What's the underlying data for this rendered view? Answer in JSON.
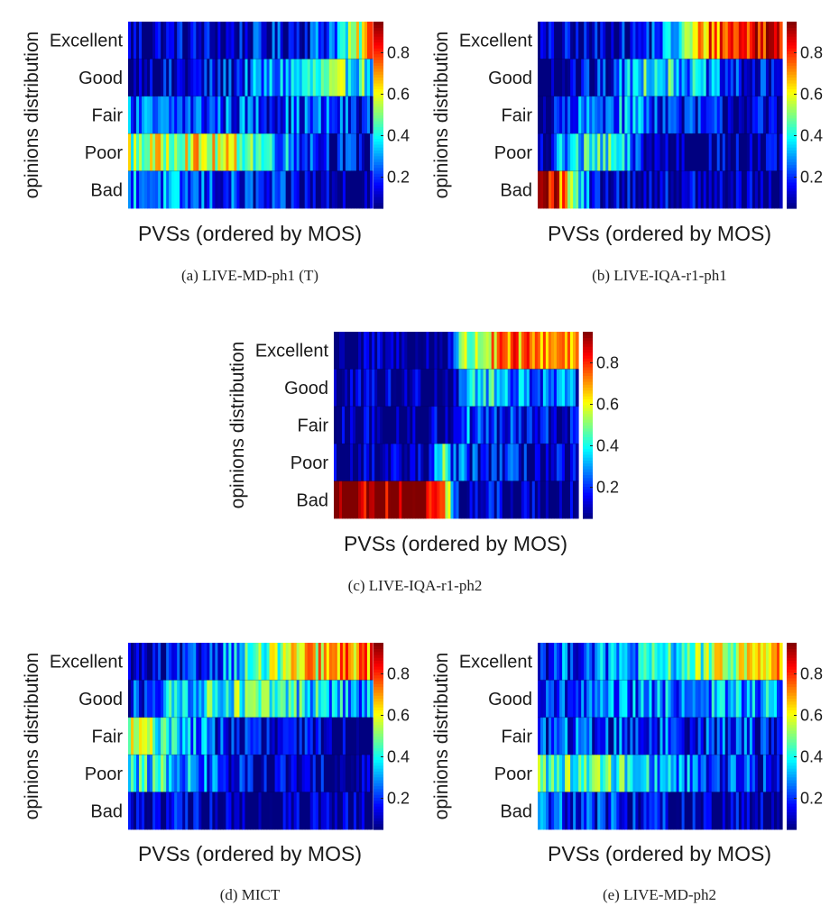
{
  "figure": {
    "colormap": "jet",
    "colorbar_ticks": [
      "0.2",
      "0.4",
      "0.6",
      "0.8"
    ],
    "colorbar_tick_values": [
      0.2,
      0.4,
      0.6,
      0.8
    ],
    "colorbar_range": [
      0.05,
      0.95
    ]
  },
  "chart_data": [
    {
      "type": "heatmap",
      "caption": "(a) LIVE-MD-ph1 (T)",
      "xlabel": "PVSs (ordered by MOS)",
      "ylabel": "opinions distribution",
      "rows": [
        "Excellent",
        "Good",
        "Fair",
        "Poor",
        "Bad"
      ],
      "columns": 90,
      "profile": {
        "Excellent": [
          [
            0.0,
            0.1
          ],
          [
            0.35,
            0.1
          ],
          [
            0.6,
            0.14
          ],
          [
            0.8,
            0.22
          ],
          [
            0.92,
            0.45
          ],
          [
            1.0,
            0.75
          ]
        ],
        "Good": [
          [
            0.0,
            0.08
          ],
          [
            0.35,
            0.13
          ],
          [
            0.55,
            0.25
          ],
          [
            0.75,
            0.38
          ],
          [
            0.88,
            0.45
          ],
          [
            1.0,
            0.4
          ]
        ],
        "Fair": [
          [
            0.0,
            0.22
          ],
          [
            0.3,
            0.22
          ],
          [
            0.6,
            0.22
          ],
          [
            0.85,
            0.2
          ],
          [
            1.0,
            0.15
          ]
        ],
        "Poor": [
          [
            0.0,
            0.5
          ],
          [
            0.25,
            0.6
          ],
          [
            0.45,
            0.55
          ],
          [
            0.65,
            0.3
          ],
          [
            0.85,
            0.15
          ],
          [
            1.0,
            0.1
          ]
        ],
        "Bad": [
          [
            0.0,
            0.3
          ],
          [
            0.25,
            0.22
          ],
          [
            0.5,
            0.16
          ],
          [
            0.7,
            0.1
          ],
          [
            1.0,
            0.05
          ]
        ]
      }
    },
    {
      "type": "heatmap",
      "caption": "(b) LIVE-IQA-r1-ph1",
      "xlabel": "PVSs (ordered by MOS)",
      "ylabel": "opinions distribution",
      "rows": [
        "Excellent",
        "Good",
        "Fair",
        "Poor",
        "Bad"
      ],
      "columns": 90,
      "profile": {
        "Excellent": [
          [
            0.0,
            0.06
          ],
          [
            0.4,
            0.12
          ],
          [
            0.55,
            0.3
          ],
          [
            0.7,
            0.75
          ],
          [
            1.0,
            0.9
          ]
        ],
        "Good": [
          [
            0.0,
            0.05
          ],
          [
            0.3,
            0.15
          ],
          [
            0.45,
            0.45
          ],
          [
            0.65,
            0.3
          ],
          [
            0.8,
            0.15
          ],
          [
            1.0,
            0.1
          ]
        ],
        "Fair": [
          [
            0.0,
            0.05
          ],
          [
            0.22,
            0.25
          ],
          [
            0.4,
            0.3
          ],
          [
            0.6,
            0.15
          ],
          [
            1.0,
            0.08
          ]
        ],
        "Poor": [
          [
            0.0,
            0.1
          ],
          [
            0.15,
            0.35
          ],
          [
            0.3,
            0.4
          ],
          [
            0.45,
            0.1
          ],
          [
            1.0,
            0.05
          ]
        ],
        "Bad": [
          [
            0.0,
            0.92
          ],
          [
            0.08,
            0.88
          ],
          [
            0.15,
            0.4
          ],
          [
            0.25,
            0.1
          ],
          [
            1.0,
            0.05
          ]
        ]
      }
    },
    {
      "type": "heatmap",
      "caption": "(c) LIVE-IQA-r1-ph2",
      "xlabel": "PVSs (ordered by MOS)",
      "ylabel": "opinions distribution",
      "rows": [
        "Excellent",
        "Good",
        "Fair",
        "Poor",
        "Bad"
      ],
      "columns": 90,
      "profile": {
        "Excellent": [
          [
            0.0,
            0.04
          ],
          [
            0.45,
            0.04
          ],
          [
            0.52,
            0.45
          ],
          [
            0.7,
            0.7
          ],
          [
            1.0,
            0.75
          ]
        ],
        "Good": [
          [
            0.0,
            0.04
          ],
          [
            0.47,
            0.06
          ],
          [
            0.55,
            0.4
          ],
          [
            0.75,
            0.3
          ],
          [
            1.0,
            0.2
          ]
        ],
        "Fair": [
          [
            0.0,
            0.04
          ],
          [
            0.46,
            0.06
          ],
          [
            0.52,
            0.25
          ],
          [
            0.7,
            0.15
          ],
          [
            1.0,
            0.1
          ]
        ],
        "Poor": [
          [
            0.0,
            0.04
          ],
          [
            0.4,
            0.06
          ],
          [
            0.44,
            0.45
          ],
          [
            0.5,
            0.2
          ],
          [
            1.0,
            0.05
          ]
        ],
        "Bad": [
          [
            0.0,
            0.95
          ],
          [
            0.38,
            0.95
          ],
          [
            0.44,
            0.7
          ],
          [
            0.52,
            0.1
          ],
          [
            1.0,
            0.05
          ]
        ]
      }
    },
    {
      "type": "heatmap",
      "caption": "(d) MICT",
      "xlabel": "PVSs (ordered by MOS)",
      "ylabel": "opinions distribution",
      "rows": [
        "Excellent",
        "Good",
        "Fair",
        "Poor",
        "Bad"
      ],
      "columns": 90,
      "profile": {
        "Excellent": [
          [
            0.0,
            0.05
          ],
          [
            0.25,
            0.12
          ],
          [
            0.45,
            0.35
          ],
          [
            0.7,
            0.6
          ],
          [
            1.0,
            0.75
          ]
        ],
        "Good": [
          [
            0.0,
            0.15
          ],
          [
            0.2,
            0.35
          ],
          [
            0.45,
            0.45
          ],
          [
            0.7,
            0.4
          ],
          [
            1.0,
            0.25
          ]
        ],
        "Fair": [
          [
            0.0,
            0.55
          ],
          [
            0.15,
            0.45
          ],
          [
            0.35,
            0.2
          ],
          [
            0.6,
            0.1
          ],
          [
            1.0,
            0.06
          ]
        ],
        "Poor": [
          [
            0.0,
            0.35
          ],
          [
            0.15,
            0.4
          ],
          [
            0.3,
            0.25
          ],
          [
            0.5,
            0.1
          ],
          [
            1.0,
            0.05
          ]
        ],
        "Bad": [
          [
            0.0,
            0.15
          ],
          [
            0.15,
            0.1
          ],
          [
            0.4,
            0.05
          ],
          [
            1.0,
            0.04
          ]
        ]
      }
    },
    {
      "type": "heatmap",
      "caption": "(e) LIVE-MD-ph2",
      "xlabel": "PVSs (ordered by MOS)",
      "ylabel": "opinions distribution",
      "rows": [
        "Excellent",
        "Good",
        "Fair",
        "Poor",
        "Bad"
      ],
      "columns": 90,
      "profile": {
        "Excellent": [
          [
            0.0,
            0.18
          ],
          [
            0.4,
            0.3
          ],
          [
            0.7,
            0.5
          ],
          [
            1.0,
            0.7
          ]
        ],
        "Good": [
          [
            0.0,
            0.15
          ],
          [
            0.4,
            0.25
          ],
          [
            0.75,
            0.3
          ],
          [
            1.0,
            0.3
          ]
        ],
        "Fair": [
          [
            0.0,
            0.2
          ],
          [
            0.5,
            0.2
          ],
          [
            1.0,
            0.18
          ]
        ],
        "Poor": [
          [
            0.0,
            0.45
          ],
          [
            0.3,
            0.45
          ],
          [
            0.55,
            0.3
          ],
          [
            0.8,
            0.2
          ],
          [
            1.0,
            0.12
          ]
        ],
        "Bad": [
          [
            0.0,
            0.25
          ],
          [
            0.3,
            0.18
          ],
          [
            0.6,
            0.1
          ],
          [
            1.0,
            0.06
          ]
        ]
      }
    }
  ]
}
